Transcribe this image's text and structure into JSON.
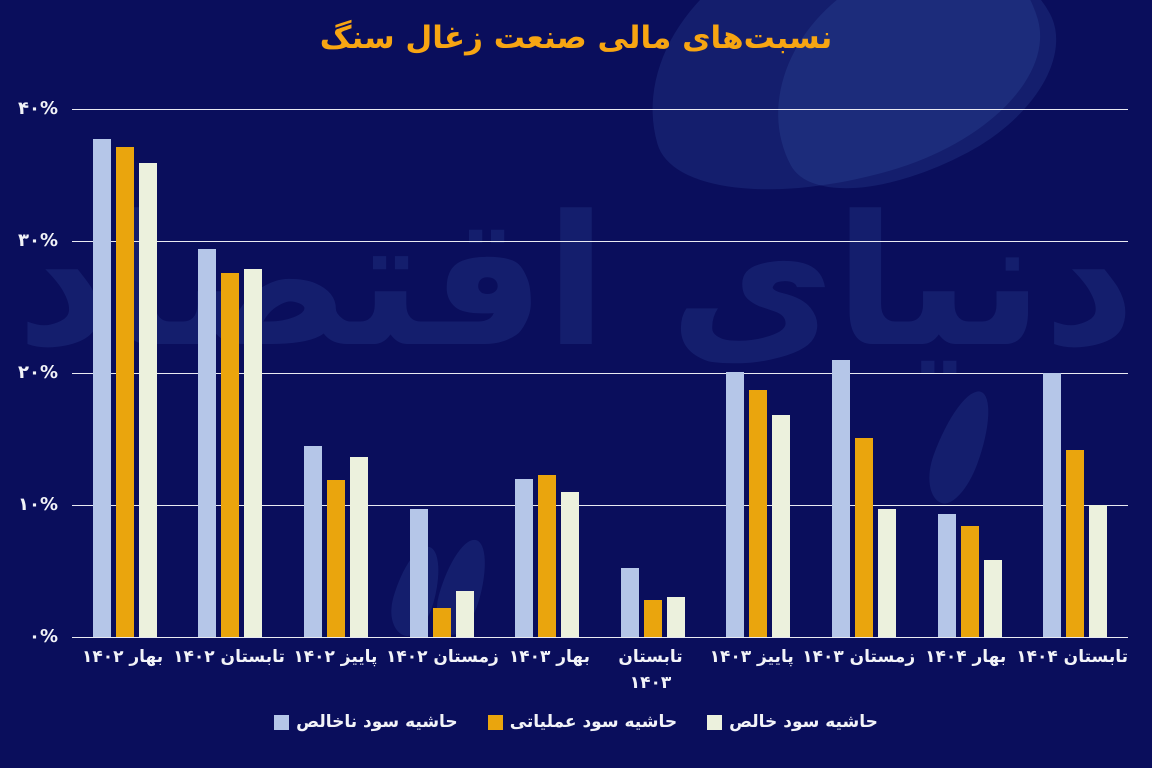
{
  "title": "نسبت‌های مالی صنعت زغال سنگ",
  "watermark_text": "دنیای اقتصاد",
  "colors": {
    "background": "#0a0e5c",
    "title": "#f7a512",
    "axis_text": "#f2f3f8",
    "gridline": "#e9eaf2",
    "watermark": "#4a74c8",
    "gross": "#b5c6e8",
    "operating": "#eaa50d",
    "net": "#ecf1dd"
  },
  "chart_data": {
    "type": "bar",
    "title": "نسبت‌های مالی صنعت زغال سنگ",
    "xlabel": "",
    "ylabel": "",
    "ylim": [
      0,
      40
    ],
    "grid": true,
    "legend_position": "bottom",
    "y_ticks": [
      {
        "value": 40,
        "label": "۴۰%"
      },
      {
        "value": 30,
        "label": "۳۰%"
      },
      {
        "value": 20,
        "label": "۲۰%"
      },
      {
        "value": 10,
        "label": "۱۰%"
      },
      {
        "value": 0,
        "label": "۰%"
      }
    ],
    "categories": [
      "بهار ۱۴۰۲",
      "تابستان ۱۴۰۲",
      "پاییز ۱۴۰۲",
      "زمستان ۱۴۰۲",
      "بهار ۱۴۰۳",
      "تابستان\n۱۴۰۳",
      "پاییز ۱۴۰۳",
      "زمستان ۱۴۰۳",
      "بهار ۱۴۰۴",
      "تابستان ۱۴۰۴"
    ],
    "series": [
      {
        "name": "حاشیه سود ناخالص",
        "color_key": "gross",
        "values": [
          37.7,
          29.4,
          14.5,
          9.7,
          12.0,
          5.2,
          20.1,
          21.0,
          9.3,
          20.0
        ]
      },
      {
        "name": "حاشیه سود عملیاتی",
        "color_key": "operating",
        "values": [
          37.1,
          27.6,
          11.9,
          2.2,
          12.3,
          2.8,
          18.7,
          15.1,
          8.4,
          14.2
        ]
      },
      {
        "name": "حاشیه سود خالص",
        "color_key": "net",
        "values": [
          35.9,
          27.9,
          13.6,
          3.5,
          11.0,
          3.0,
          16.8,
          9.7,
          5.8,
          10.0
        ]
      }
    ]
  }
}
